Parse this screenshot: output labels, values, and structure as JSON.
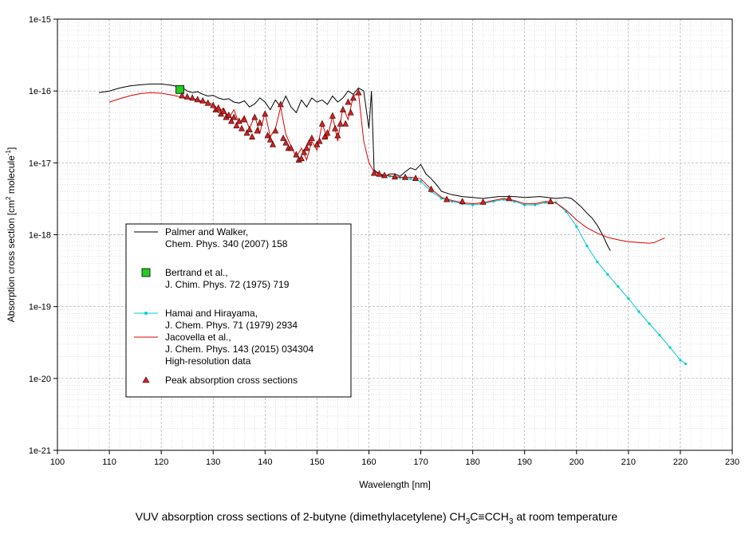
{
  "chart_data": {
    "type": "line",
    "caption": "VUV absorption cross sections of 2-butyne (dimethylacetylene) CH3C≡CCH3 at room temperature",
    "caption_parts": [
      "VUV absorption cross sections of 2-butyne (dimethylacetylene) CH",
      "3",
      "C≡CCH",
      "3",
      " at room temperature"
    ],
    "xlabel": "Wavelength [nm]",
    "ylabel_parts": [
      "Absorption cross section [cm",
      "2",
      " molecule",
      "-1",
      "]"
    ],
    "xlim": [
      100,
      230
    ],
    "ylim": [
      1e-21,
      1e-15
    ],
    "y_scale": "log",
    "grid": true,
    "legend_position": "lower-left",
    "x_ticks": [
      100,
      110,
      120,
      130,
      140,
      150,
      160,
      170,
      180,
      190,
      200,
      210,
      220,
      230
    ],
    "y_ticks": [
      "1e-21",
      "1e-20",
      "1e-19",
      "1e-18",
      "1e-17",
      "1e-16",
      "1e-15"
    ],
    "legend": [
      {
        "lines": [
          "Palmer and Walker,",
          "Chem. Phys. 340 (2007) 158"
        ],
        "marker": "line",
        "color": "#000000"
      },
      {
        "lines": [
          "Bertrand et al.,",
          "J. Chim. Phys. 72 (1975) 719"
        ],
        "marker": "square",
        "color": "#22cc22"
      },
      {
        "lines": [
          "Hamai and Hirayama,",
          "J. Chem. Phys. 71 (1979) 2934"
        ],
        "marker": "line-dot",
        "color": "#00cccc"
      },
      {
        "lines": [
          "Jacovella et al.,",
          "J. Chem. Phys. 143 (2015) 034304",
          "High-resolution data"
        ],
        "marker": "line",
        "color": "#dd0000"
      },
      {
        "lines": [
          "Peak absorption cross sections"
        ],
        "marker": "triangle",
        "color": "#cc2222"
      }
    ],
    "series": [
      {
        "name": "Palmer and Walker",
        "color": "#000000",
        "points": [
          [
            108,
            9.5e-17
          ],
          [
            110,
            1e-16
          ],
          [
            112,
            1.1e-16
          ],
          [
            114,
            1.18e-16
          ],
          [
            116,
            1.22e-16
          ],
          [
            118,
            1.25e-16
          ],
          [
            120,
            1.25e-16
          ],
          [
            122,
            1.2e-16
          ],
          [
            124,
            1.12e-16
          ],
          [
            125,
            1e-16
          ],
          [
            126,
            9.5e-17
          ],
          [
            127,
            9.8e-17
          ],
          [
            128,
            9e-17
          ],
          [
            129,
            8.5e-17
          ],
          [
            130,
            8.7e-17
          ],
          [
            131,
            8e-17
          ],
          [
            132,
            7.6e-17
          ],
          [
            133,
            7.8e-17
          ],
          [
            134,
            7e-17
          ],
          [
            135,
            6.8e-17
          ],
          [
            136,
            7.3e-17
          ],
          [
            137,
            6e-17
          ],
          [
            138,
            6.6e-17
          ],
          [
            139,
            8e-17
          ],
          [
            140,
            7e-17
          ],
          [
            141,
            5.5e-17
          ],
          [
            142,
            7.5e-17
          ],
          [
            143,
            6e-17
          ],
          [
            144,
            8.5e-17
          ],
          [
            145,
            6e-17
          ],
          [
            146,
            5e-17
          ],
          [
            147,
            7.5e-17
          ],
          [
            148,
            6e-17
          ],
          [
            149,
            8e-17
          ],
          [
            150,
            7e-17
          ],
          [
            151,
            7.5e-17
          ],
          [
            152,
            6.5e-17
          ],
          [
            153,
            8.5e-17
          ],
          [
            154,
            7e-17
          ],
          [
            155,
            8e-17
          ],
          [
            156,
            1e-16
          ],
          [
            157,
            9e-17
          ],
          [
            158,
            1.1e-16
          ],
          [
            159,
            1e-16
          ],
          [
            160,
            3e-17
          ],
          [
            160.5,
            1e-16
          ],
          [
            161,
            8e-18
          ],
          [
            162,
            7e-18
          ],
          [
            163,
            6.5e-18
          ],
          [
            164,
            7e-18
          ],
          [
            165,
            7e-18
          ],
          [
            166,
            6.5e-18
          ],
          [
            167,
            7.5e-18
          ],
          [
            168,
            8.5e-18
          ],
          [
            169,
            8e-18
          ],
          [
            170,
            9.5e-18
          ],
          [
            171,
            7e-18
          ],
          [
            172,
            6e-18
          ],
          [
            173,
            5e-18
          ],
          [
            174,
            4e-18
          ],
          [
            176,
            3.6e-18
          ],
          [
            178,
            3.4e-18
          ],
          [
            180,
            3.3e-18
          ],
          [
            182,
            3.2e-18
          ],
          [
            185,
            3.4e-18
          ],
          [
            188,
            3.4e-18
          ],
          [
            190,
            3.3e-18
          ],
          [
            193,
            3.4e-18
          ],
          [
            196,
            3.2e-18
          ],
          [
            198,
            3.3e-18
          ],
          [
            199,
            3.2e-18
          ],
          [
            200,
            2.8e-18
          ],
          [
            201,
            2.4e-18
          ],
          [
            202,
            2e-18
          ],
          [
            203,
            1.7e-18
          ],
          [
            204,
            1.35e-18
          ],
          [
            205,
            1e-18
          ],
          [
            206,
            7e-19
          ],
          [
            206.5,
            6e-19
          ]
        ]
      },
      {
        "name": "Hamai and Hirayama",
        "color": "#00cccc",
        "points": [
          [
            162,
            7e-18
          ],
          [
            164,
            6.5e-18
          ],
          [
            166,
            6.2e-18
          ],
          [
            168,
            6e-18
          ],
          [
            170,
            5.5e-18
          ],
          [
            172,
            4e-18
          ],
          [
            174,
            3.2e-18
          ],
          [
            176,
            2.9e-18
          ],
          [
            178,
            2.7e-18
          ],
          [
            180,
            2.6e-18
          ],
          [
            182,
            2.7e-18
          ],
          [
            184,
            2.9e-18
          ],
          [
            186,
            3.1e-18
          ],
          [
            188,
            2.9e-18
          ],
          [
            190,
            2.6e-18
          ],
          [
            192,
            2.6e-18
          ],
          [
            194,
            2.8e-18
          ],
          [
            196,
            2.8e-18
          ],
          [
            198,
            2.1e-18
          ],
          [
            200,
            1.3e-18
          ],
          [
            202,
            7e-19
          ],
          [
            204,
            4.2e-19
          ],
          [
            206,
            2.8e-19
          ],
          [
            208,
            1.9e-19
          ],
          [
            210,
            1.3e-19
          ],
          [
            212,
            8.5e-20
          ],
          [
            214,
            5.8e-20
          ],
          [
            216,
            4e-20
          ],
          [
            218,
            2.7e-20
          ],
          [
            220,
            1.8e-20
          ],
          [
            221,
            1.6e-20
          ]
        ]
      },
      {
        "name": "Jacovella et al.",
        "color": "#dd0000",
        "points": [
          [
            110,
            7e-17
          ],
          [
            112,
            7.8e-17
          ],
          [
            114,
            8.6e-17
          ],
          [
            116,
            9.2e-17
          ],
          [
            118,
            9.5e-17
          ],
          [
            120,
            9.3e-17
          ],
          [
            122,
            8.8e-17
          ],
          [
            124,
            8.2e-17
          ],
          [
            126,
            7.8e-17
          ],
          [
            128,
            7.2e-17
          ],
          [
            130,
            6.5e-17
          ],
          [
            131,
            5e-17
          ],
          [
            132,
            5.8e-17
          ],
          [
            133,
            4.2e-17
          ],
          [
            134,
            5.5e-17
          ],
          [
            135,
            3.5e-17
          ],
          [
            136,
            4.5e-17
          ],
          [
            137,
            3e-17
          ],
          [
            138,
            4.5e-17
          ],
          [
            139,
            2.6e-17
          ],
          [
            140,
            5e-17
          ],
          [
            141,
            2.3e-17
          ],
          [
            142,
            3e-17
          ],
          [
            143,
            6e-17
          ],
          [
            144,
            2.5e-17
          ],
          [
            145,
            1.7e-17
          ],
          [
            146,
            1.2e-17
          ],
          [
            147,
            1.6e-17
          ],
          [
            148,
            1.1e-17
          ],
          [
            149,
            2e-17
          ],
          [
            150,
            1.5e-17
          ],
          [
            151,
            3.5e-17
          ],
          [
            152,
            2.2e-17
          ],
          [
            153,
            4.5e-17
          ],
          [
            154,
            2e-17
          ],
          [
            155,
            6e-17
          ],
          [
            156,
            4e-17
          ],
          [
            157,
            8.5e-17
          ],
          [
            158,
            9.5e-17
          ],
          [
            159,
            2e-17
          ],
          [
            160,
            1e-17
          ],
          [
            161,
            7.5e-18
          ],
          [
            162,
            7e-18
          ],
          [
            164,
            6.6e-18
          ],
          [
            166,
            6.3e-18
          ],
          [
            168,
            6.3e-18
          ],
          [
            170,
            6e-18
          ],
          [
            172,
            4.3e-18
          ],
          [
            174,
            3.3e-18
          ],
          [
            176,
            3e-18
          ],
          [
            178,
            2.8e-18
          ],
          [
            180,
            2.7e-18
          ],
          [
            182,
            2.8e-18
          ],
          [
            184,
            3e-18
          ],
          [
            186,
            3.2e-18
          ],
          [
            188,
            3e-18
          ],
          [
            190,
            2.7e-18
          ],
          [
            192,
            2.7e-18
          ],
          [
            194,
            2.9e-18
          ],
          [
            196,
            2.8e-18
          ],
          [
            198,
            2.2e-18
          ],
          [
            200,
            1.6e-18
          ],
          [
            202,
            1.25e-18
          ],
          [
            204,
            1.05e-18
          ],
          [
            206,
            9.2e-19
          ],
          [
            208,
            8.5e-19
          ],
          [
            210,
            8e-19
          ],
          [
            212,
            7.8e-19
          ],
          [
            214,
            7.6e-19
          ],
          [
            215,
            7.8e-19
          ],
          [
            216,
            8.4e-19
          ],
          [
            217,
            9e-19
          ]
        ]
      }
    ],
    "markers": [
      {
        "name": "Bertrand et al.",
        "shape": "square",
        "color": "#22cc22",
        "points": [
          [
            123.6,
            1.05e-16
          ]
        ]
      },
      {
        "name": "Peak absorption cross sections",
        "shape": "triangle",
        "color": "#cc2222",
        "points": [
          [
            124,
            8.6e-17
          ],
          [
            125,
            8.3e-17
          ],
          [
            126,
            8e-17
          ],
          [
            127,
            7.6e-17
          ],
          [
            128,
            7.3e-17
          ],
          [
            129,
            6.8e-17
          ],
          [
            130,
            6.3e-17
          ],
          [
            130.5,
            5.5e-17
          ],
          [
            131,
            5.8e-17
          ],
          [
            131.5,
            4.8e-17
          ],
          [
            132,
            5.2e-17
          ],
          [
            132.5,
            4.3e-17
          ],
          [
            133,
            4.6e-17
          ],
          [
            133.5,
            3.8e-17
          ],
          [
            134,
            4.3e-17
          ],
          [
            134.5,
            3.3e-17
          ],
          [
            135,
            3.8e-17
          ],
          [
            135.5,
            3e-17
          ],
          [
            136,
            4e-17
          ],
          [
            136.5,
            2.6e-17
          ],
          [
            137,
            2.9e-17
          ],
          [
            137.5,
            2.3e-17
          ],
          [
            138,
            4.3e-17
          ],
          [
            138.5,
            2.8e-17
          ],
          [
            139,
            3.6e-17
          ],
          [
            140,
            4.8e-17
          ],
          [
            140.5,
            2.4e-17
          ],
          [
            141,
            2.1e-17
          ],
          [
            141.5,
            1.8e-17
          ],
          [
            142,
            2.8e-17
          ],
          [
            143,
            6.5e-17
          ],
          [
            143.5,
            2.2e-17
          ],
          [
            144,
            1.9e-17
          ],
          [
            144.5,
            1.6e-17
          ],
          [
            145,
            1.6e-17
          ],
          [
            146,
            1.3e-17
          ],
          [
            146.5,
            1.1e-17
          ],
          [
            147,
            1.15e-17
          ],
          [
            147.5,
            1.4e-17
          ],
          [
            148,
            1.6e-17
          ],
          [
            148.5,
            1.9e-17
          ],
          [
            149,
            2.2e-17
          ],
          [
            150,
            1.8e-17
          ],
          [
            150.5,
            2e-17
          ],
          [
            151,
            3.5e-17
          ],
          [
            151.5,
            2.3e-17
          ],
          [
            152,
            2.6e-17
          ],
          [
            153,
            4.5e-17
          ],
          [
            153.5,
            3e-17
          ],
          [
            154,
            2.4e-17
          ],
          [
            154.5,
            3.5e-17
          ],
          [
            155,
            5.5e-17
          ],
          [
            155.5,
            3.5e-17
          ],
          [
            156,
            7e-17
          ],
          [
            156.5,
            5e-17
          ],
          [
            157,
            8e-17
          ],
          [
            158,
            9.5e-17
          ],
          [
            161,
            7.2e-18
          ],
          [
            162,
            7e-18
          ],
          [
            163,
            6.7e-18
          ],
          [
            165,
            6.4e-18
          ],
          [
            167,
            6.3e-18
          ],
          [
            169,
            6.1e-18
          ],
          [
            172,
            4.3e-18
          ],
          [
            175,
            3.1e-18
          ],
          [
            178,
            2.9e-18
          ],
          [
            182,
            2.85e-18
          ],
          [
            187,
            3.2e-18
          ],
          [
            195,
            2.9e-18
          ]
        ]
      }
    ]
  }
}
